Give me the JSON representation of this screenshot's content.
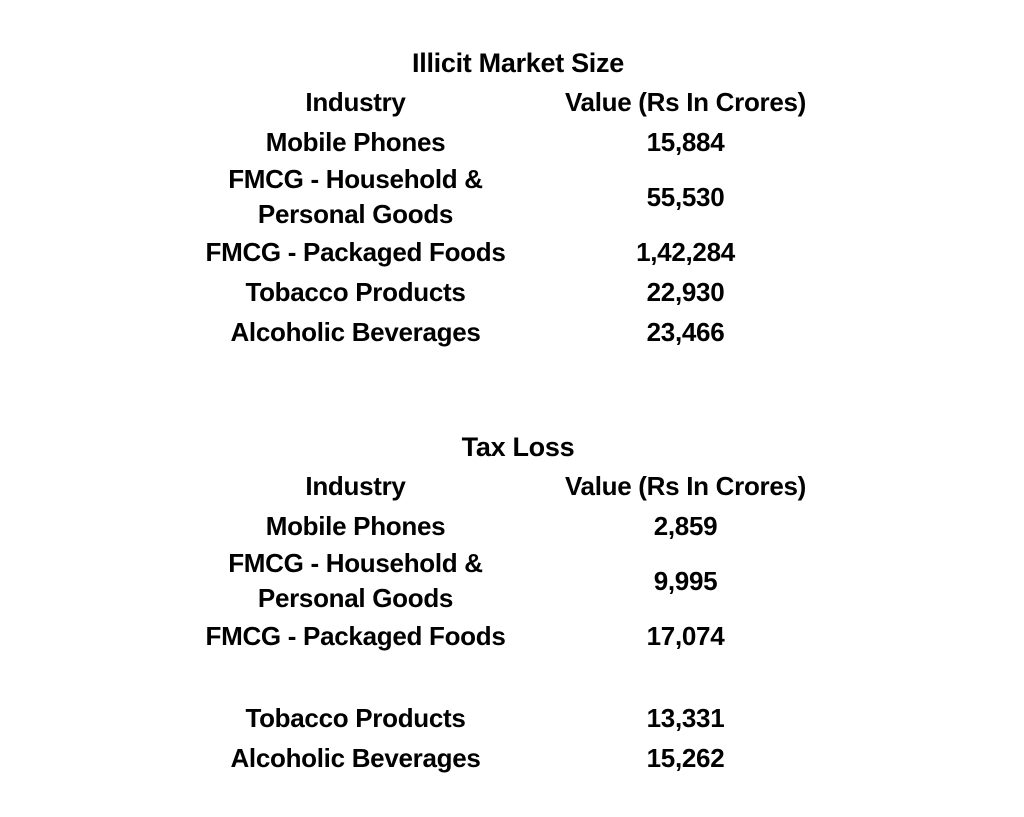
{
  "page": {
    "background_color": "#ffffff",
    "text_color": "#000000"
  },
  "chart_data": [
    {
      "type": "table",
      "title": "Illicit Market Size",
      "columns": [
        "Industry",
        "Value (Rs In Crores)"
      ],
      "rows": [
        [
          "Mobile Phones",
          "15,884"
        ],
        [
          "FMCG - Household & Personal Goods",
          "55,530"
        ],
        [
          "FMCG - Packaged Foods",
          "1,42,284"
        ],
        [
          "Tobacco Products",
          "22,930"
        ],
        [
          "Alcoholic Beverages",
          "23,466"
        ]
      ],
      "values_numeric": [
        15884,
        55530,
        142284,
        22930,
        23466
      ],
      "value_unit": "Rs In Crores"
    },
    {
      "type": "table",
      "title": "Tax Loss",
      "columns": [
        "Industry",
        "Value (Rs In Crores)"
      ],
      "rows": [
        [
          "Mobile Phones",
          "2,859"
        ],
        [
          "FMCG - Household & Personal Goods",
          "9,995"
        ],
        [
          "FMCG - Packaged Foods",
          "17,074"
        ],
        [
          "Tobacco Products",
          "13,331"
        ],
        [
          "Alcoholic Beverages",
          "15,262"
        ]
      ],
      "values_numeric": [
        2859,
        9995,
        17074,
        13331,
        15262
      ],
      "value_unit": "Rs In Crores"
    }
  ]
}
